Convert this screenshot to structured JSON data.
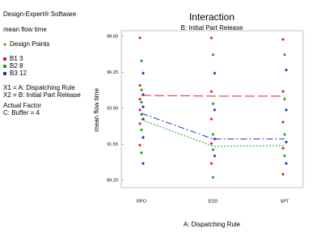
{
  "chart_data": {
    "type": "line",
    "title": "Interaction",
    "subtitle": "B: Initial Part Release",
    "x_label": "A: Dispatching Rule",
    "y_label": "mean flow time",
    "annotations": [
      "Design-Expert® Software",
      "mean flow time",
      "X1 = A: Dispatching Rule",
      "X2 = B: Initial Part Release",
      "Actual Factor",
      "C: Buffer = 4"
    ],
    "design_points_label": "Design Points",
    "design_points_color": "#8a8a00",
    "categories": [
      "RPO",
      "EDD",
      "SPT"
    ],
    "series": [
      {
        "name": "B1 3",
        "color": "#e02020",
        "dash": "12,4",
        "values": [
          94.75,
          94.7,
          94.7
        ]
      },
      {
        "name": "B2 8",
        "color": "#20a020",
        "dash": "2,2",
        "values": [
          93.16,
          91.42,
          91.47
        ]
      },
      {
        "name": "B3 12",
        "color": "#2030c0",
        "dash": "8,3,2,3",
        "values": [
          93.58,
          91.9,
          91.9
        ]
      }
    ],
    "design_points": [
      [
        98.5,
        97.0,
        96.2,
        95.4,
        95.1,
        94.8,
        94.5,
        94.3,
        94.0,
        93.8,
        93.5,
        93.2,
        92.9,
        92.5,
        92.0,
        91.5,
        91.0,
        90.3
      ],
      [
        98.5,
        97.4,
        96.2,
        95.0,
        94.2,
        93.8,
        93.2,
        92.2,
        91.9,
        91.6,
        91.2,
        90.8,
        90.3,
        89.4
      ],
      [
        98.4,
        97.4,
        96.4,
        95.0,
        94.5,
        93.8,
        93.0,
        92.2,
        91.7,
        91.3,
        90.8,
        90.3,
        89.6
      ]
    ],
    "ylim": [
      89.2,
      98.6
    ],
    "yticks": [
      {
        "value": 89.2,
        "label": "89.20"
      },
      {
        "value": 91.55,
        "label": "91.55"
      },
      {
        "value": 93.9,
        "label": "93.90"
      },
      {
        "value": 96.25,
        "label": "96.25"
      },
      {
        "value": 98.6,
        "label": "98.60"
      }
    ]
  }
}
